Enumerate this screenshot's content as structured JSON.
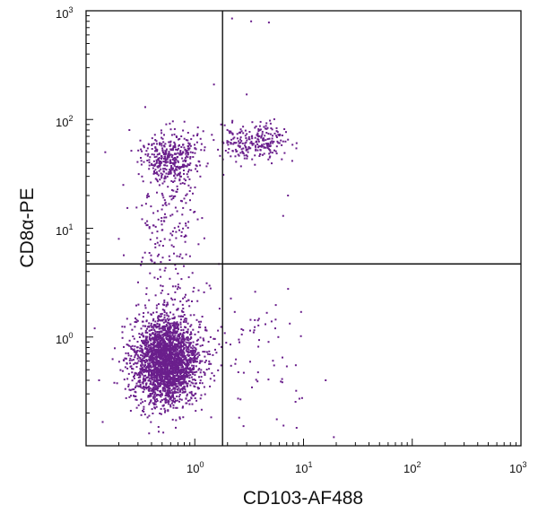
{
  "chart_data": {
    "type": "scatter",
    "scale": "log10",
    "xlabel": "CD103-AF488",
    "ylabel": "CD8α-PE",
    "xlim": [
      0.1,
      1000
    ],
    "ylim": [
      0.1,
      1000
    ],
    "x_ticks": [
      {
        "base": "10",
        "exp": "0"
      },
      {
        "base": "10",
        "exp": "1"
      },
      {
        "base": "10",
        "exp": "2"
      },
      {
        "base": "10",
        "exp": "3"
      }
    ],
    "y_ticks": [
      {
        "base": "10",
        "exp": "0"
      },
      {
        "base": "10",
        "exp": "1"
      },
      {
        "base": "10",
        "exp": "2"
      },
      {
        "base": "10",
        "exp": "3"
      }
    ],
    "quadrant_gate": {
      "x": 1.8,
      "y": 4.7
    },
    "dot_color": "#6a1f8c",
    "populations": [
      {
        "center": [
          0.55,
          0.6
        ],
        "spread_log": [
          0.15,
          0.2
        ],
        "count": 2600
      },
      {
        "center": [
          0.6,
          45
        ],
        "spread_log": [
          0.13,
          0.12
        ],
        "count": 380
      },
      {
        "center": [
          0.55,
          12
        ],
        "spread_log": [
          0.13,
          0.3
        ],
        "count": 160
      },
      {
        "center": [
          3.6,
          62
        ],
        "spread_log": [
          0.16,
          0.08
        ],
        "count": 250
      },
      {
        "center": [
          3.5,
          0.8
        ],
        "spread_log": [
          0.3,
          0.3
        ],
        "count": 80
      },
      {
        "center": [
          0.7,
          3
        ],
        "spread_log": [
          0.2,
          0.2
        ],
        "count": 60
      }
    ],
    "sparse_events": [
      [
        2.2,
        850
      ],
      [
        3.3,
        800
      ],
      [
        4.8,
        780
      ],
      [
        1.5,
        210
      ],
      [
        3.0,
        170
      ],
      [
        0.22,
        25
      ],
      [
        0.25,
        80
      ],
      [
        0.2,
        8
      ],
      [
        0.12,
        1.2
      ],
      [
        19,
        0.12
      ],
      [
        0.38,
        0.13
      ],
      [
        16,
        0.4
      ],
      [
        8.5,
        0.55
      ],
      [
        9.5,
        1.7
      ],
      [
        6.5,
        13
      ],
      [
        7.2,
        20
      ],
      [
        0.15,
        50
      ],
      [
        0.9,
        22
      ],
      [
        0.35,
        130
      ],
      [
        5.5,
        1.2
      ]
    ]
  }
}
